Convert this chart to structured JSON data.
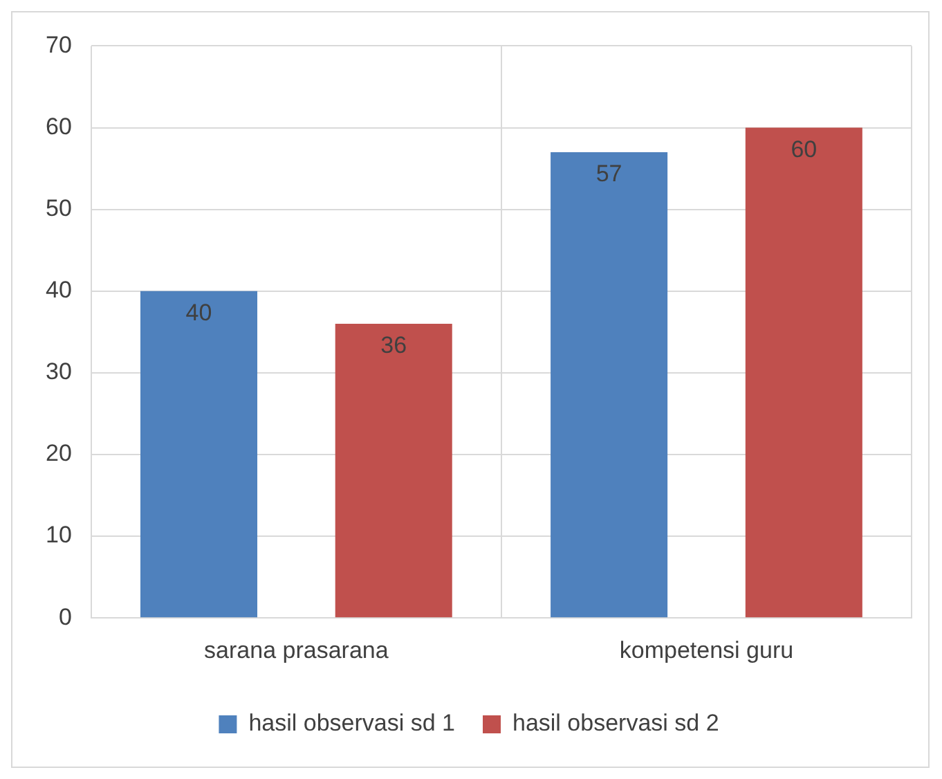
{
  "chart_data": {
    "type": "bar",
    "categories": [
      "sarana prasarana",
      "kompetensi guru"
    ],
    "series": [
      {
        "name": "hasil observasi sd 1",
        "color": "#4f81bd",
        "values": [
          40,
          57
        ]
      },
      {
        "name": "hasil observasi sd 2",
        "color": "#c0504d",
        "values": [
          36,
          60
        ]
      }
    ],
    "ylim": [
      0,
      70
    ],
    "yticks": [
      0,
      10,
      20,
      30,
      40,
      50,
      60,
      70
    ],
    "grid": true,
    "legend": "bottom",
    "data_labels": true
  }
}
